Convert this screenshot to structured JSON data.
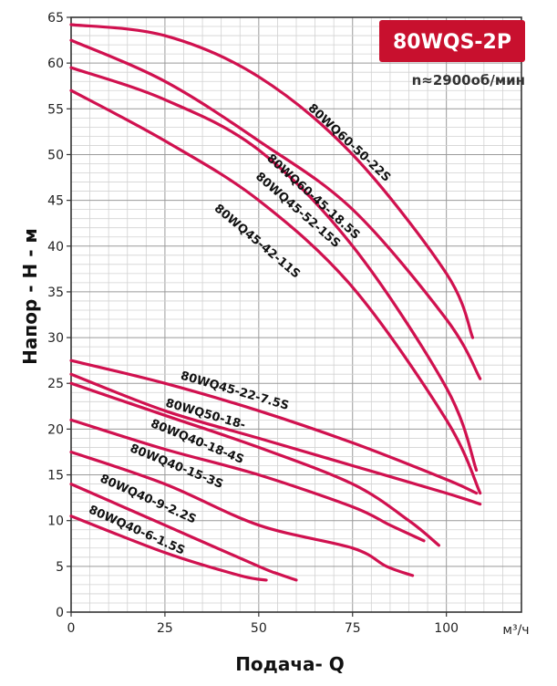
{
  "badge": {
    "model": "80WQS-2P",
    "speed": "n≈2900об/мин",
    "color": "#c8102e"
  },
  "chart_data": {
    "type": "line",
    "xlabel": "Подача- Q",
    "ylabel": "Напор - Н - м",
    "x_unit": "м³/ч",
    "xlim": [
      0,
      120
    ],
    "ylim": [
      0,
      65
    ],
    "x_ticks": [
      0,
      25,
      50,
      75,
      100
    ],
    "y_ticks": [
      0,
      5,
      10,
      15,
      20,
      25,
      30,
      35,
      40,
      45,
      50,
      55,
      60,
      65
    ],
    "grid": true,
    "line_color": "#d0114f",
    "series": [
      {
        "name": "80WQ60-50-22S",
        "x": [
          0,
          25,
          50,
          75,
          100,
          107
        ],
        "y": [
          64.2,
          63.0,
          58.5,
          50.0,
          37.0,
          30.0
        ]
      },
      {
        "name": "80WQ60-45-18.5S",
        "x": [
          0,
          25,
          50,
          75,
          100,
          109
        ],
        "y": [
          62.5,
          58.0,
          51.5,
          44.0,
          32.0,
          25.5
        ]
      },
      {
        "name": "80WQ45-52-15S",
        "x": [
          0,
          25,
          50,
          75,
          100,
          108
        ],
        "y": [
          59.5,
          56.0,
          50.5,
          40.0,
          24.5,
          15.5
        ]
      },
      {
        "name": "80WQ45-42-11S",
        "x": [
          0,
          25,
          50,
          75,
          100,
          109
        ],
        "y": [
          57.0,
          51.5,
          45.0,
          35.5,
          21.0,
          13.0
        ]
      },
      {
        "name": "80WQ45-22-7.5S",
        "x": [
          0,
          25,
          50,
          75,
          100,
          108
        ],
        "y": [
          27.5,
          25.0,
          22.0,
          18.5,
          14.5,
          13.0
        ]
      },
      {
        "name": "80WQ50-18-",
        "x": [
          0,
          25,
          50,
          75,
          100,
          109
        ],
        "y": [
          26.0,
          22.0,
          19.0,
          16.0,
          13.0,
          11.8
        ]
      },
      {
        "name": "80WQ40-18-4S",
        "x": [
          0,
          25,
          50,
          75,
          90,
          98
        ],
        "y": [
          25.0,
          21.5,
          18.0,
          14.0,
          10.0,
          7.3
        ]
      },
      {
        "name": "80WQ40-15-3S",
        "x": [
          0,
          25,
          50,
          75,
          85,
          94
        ],
        "y": [
          21.0,
          17.8,
          15.0,
          11.5,
          9.5,
          7.8
        ]
      },
      {
        "name": "80WQ40-9-2.2S",
        "x": [
          0,
          25,
          50,
          75,
          84,
          91
        ],
        "y": [
          17.5,
          14.0,
          9.5,
          7.0,
          5.0,
          4.0
        ]
      },
      {
        "name": "80WQ40-6-1.5S",
        "x": [
          0,
          25,
          50,
          55,
          60
        ],
        "y": [
          14.0,
          9.5,
          5.0,
          4.2,
          3.5
        ]
      },
      {
        "name": "80WQ40-6-1.5S",
        "x": [
          0,
          25,
          45,
          52
        ],
        "y": [
          10.5,
          6.5,
          4.0,
          3.5
        ]
      }
    ],
    "labels": [
      {
        "text": "80WQ60-50-22S",
        "x": 63,
        "y": 55,
        "rotate": 43
      },
      {
        "text": "80WQ60-45-18.5S",
        "x": 52,
        "y": 49.5,
        "rotate": 42
      },
      {
        "text": "80WQ45-52-15S",
        "x": 49,
        "y": 47.5,
        "rotate": 41
      },
      {
        "text": "80WQ45-42-11S",
        "x": 38,
        "y": 44,
        "rotate": 40
      },
      {
        "text": "80WQ45-22-7.5S",
        "x": 29,
        "y": 25.5,
        "rotate": 16
      },
      {
        "text": "80WQ50-18-",
        "x": 25,
        "y": 22.5,
        "rotate": 16
      },
      {
        "text": "80WQ40-18-4S",
        "x": 21,
        "y": 20.3,
        "rotate": 22
      },
      {
        "text": "80WQ40-15-3S",
        "x": 15.5,
        "y": 17.6,
        "rotate": 22
      },
      {
        "text": "80WQ40-9-2.2S",
        "x": 7.5,
        "y": 14.3,
        "rotate": 24
      },
      {
        "text": "80WQ40-6-1.5S",
        "x": 4.5,
        "y": 10.9,
        "rotate": 24
      }
    ]
  }
}
